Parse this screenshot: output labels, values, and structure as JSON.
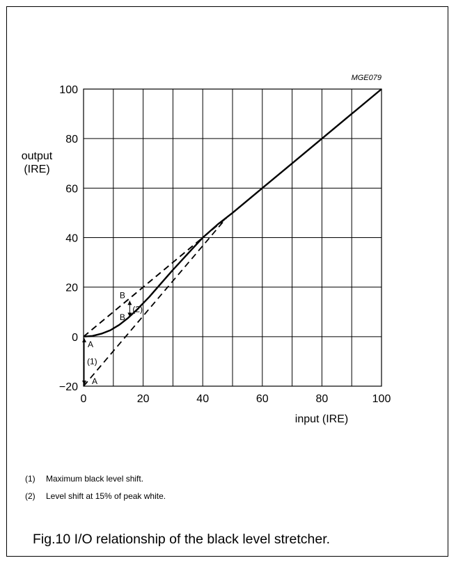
{
  "chart_data": {
    "type": "line",
    "figure_code": "MGE079",
    "xlabel": "input (IRE)",
    "ylabel": [
      "output",
      "(IRE)"
    ],
    "xlim": [
      0,
      100
    ],
    "ylim": [
      -20,
      100
    ],
    "x_ticks": [
      0,
      20,
      40,
      60,
      80,
      100
    ],
    "y_ticks": [
      -20,
      0,
      20,
      40,
      60,
      80,
      100
    ],
    "x_tick_labels": [
      "0",
      "20",
      "40",
      "60",
      "80",
      "100"
    ],
    "y_tick_labels": [
      "−20",
      "0",
      "20",
      "40",
      "60",
      "80",
      "100"
    ],
    "grid": true,
    "series": [
      {
        "style": "solid",
        "points": [
          [
            0,
            0
          ],
          [
            3,
            0.3
          ],
          [
            6,
            1.2
          ],
          [
            9,
            2.6
          ],
          [
            12,
            4.8
          ],
          [
            15,
            7.6
          ],
          [
            18,
            11
          ],
          [
            22,
            16
          ],
          [
            26,
            21.5
          ],
          [
            30,
            27
          ],
          [
            35,
            33.5
          ],
          [
            40,
            40
          ],
          [
            45,
            45.3
          ],
          [
            50,
            50
          ],
          [
            60,
            60
          ],
          [
            70,
            70
          ],
          [
            80,
            80
          ],
          [
            90,
            90
          ],
          [
            100,
            100
          ]
        ]
      },
      {
        "style": "dashed",
        "points": [
          [
            0,
            0
          ],
          [
            48,
            48
          ]
        ]
      },
      {
        "style": "dashed",
        "points": [
          [
            0,
            -20
          ],
          [
            48,
            48
          ]
        ]
      },
      {
        "style": "dashed",
        "points": [
          [
            0,
            0
          ],
          [
            15,
            15
          ],
          [
            48,
            48
          ]
        ]
      }
    ],
    "annotations": [
      {
        "label": "A",
        "x": 0,
        "y": 0
      },
      {
        "label": "A",
        "x": 0,
        "y": -20
      },
      {
        "label": "(1)",
        "x": 0,
        "y": -10
      },
      {
        "label": "B",
        "x": 15,
        "y": 15
      },
      {
        "label": "B",
        "x": 15,
        "y": 7.6
      },
      {
        "label": "(2)",
        "x": 15,
        "y": 11
      }
    ]
  },
  "notes": [
    {
      "num": "(1)",
      "text": "Maximum black level shift."
    },
    {
      "num": "(2)",
      "text": "Level shift at 15% of peak white."
    }
  ],
  "caption": "Fig.10  I/O relationship of the black level stretcher."
}
